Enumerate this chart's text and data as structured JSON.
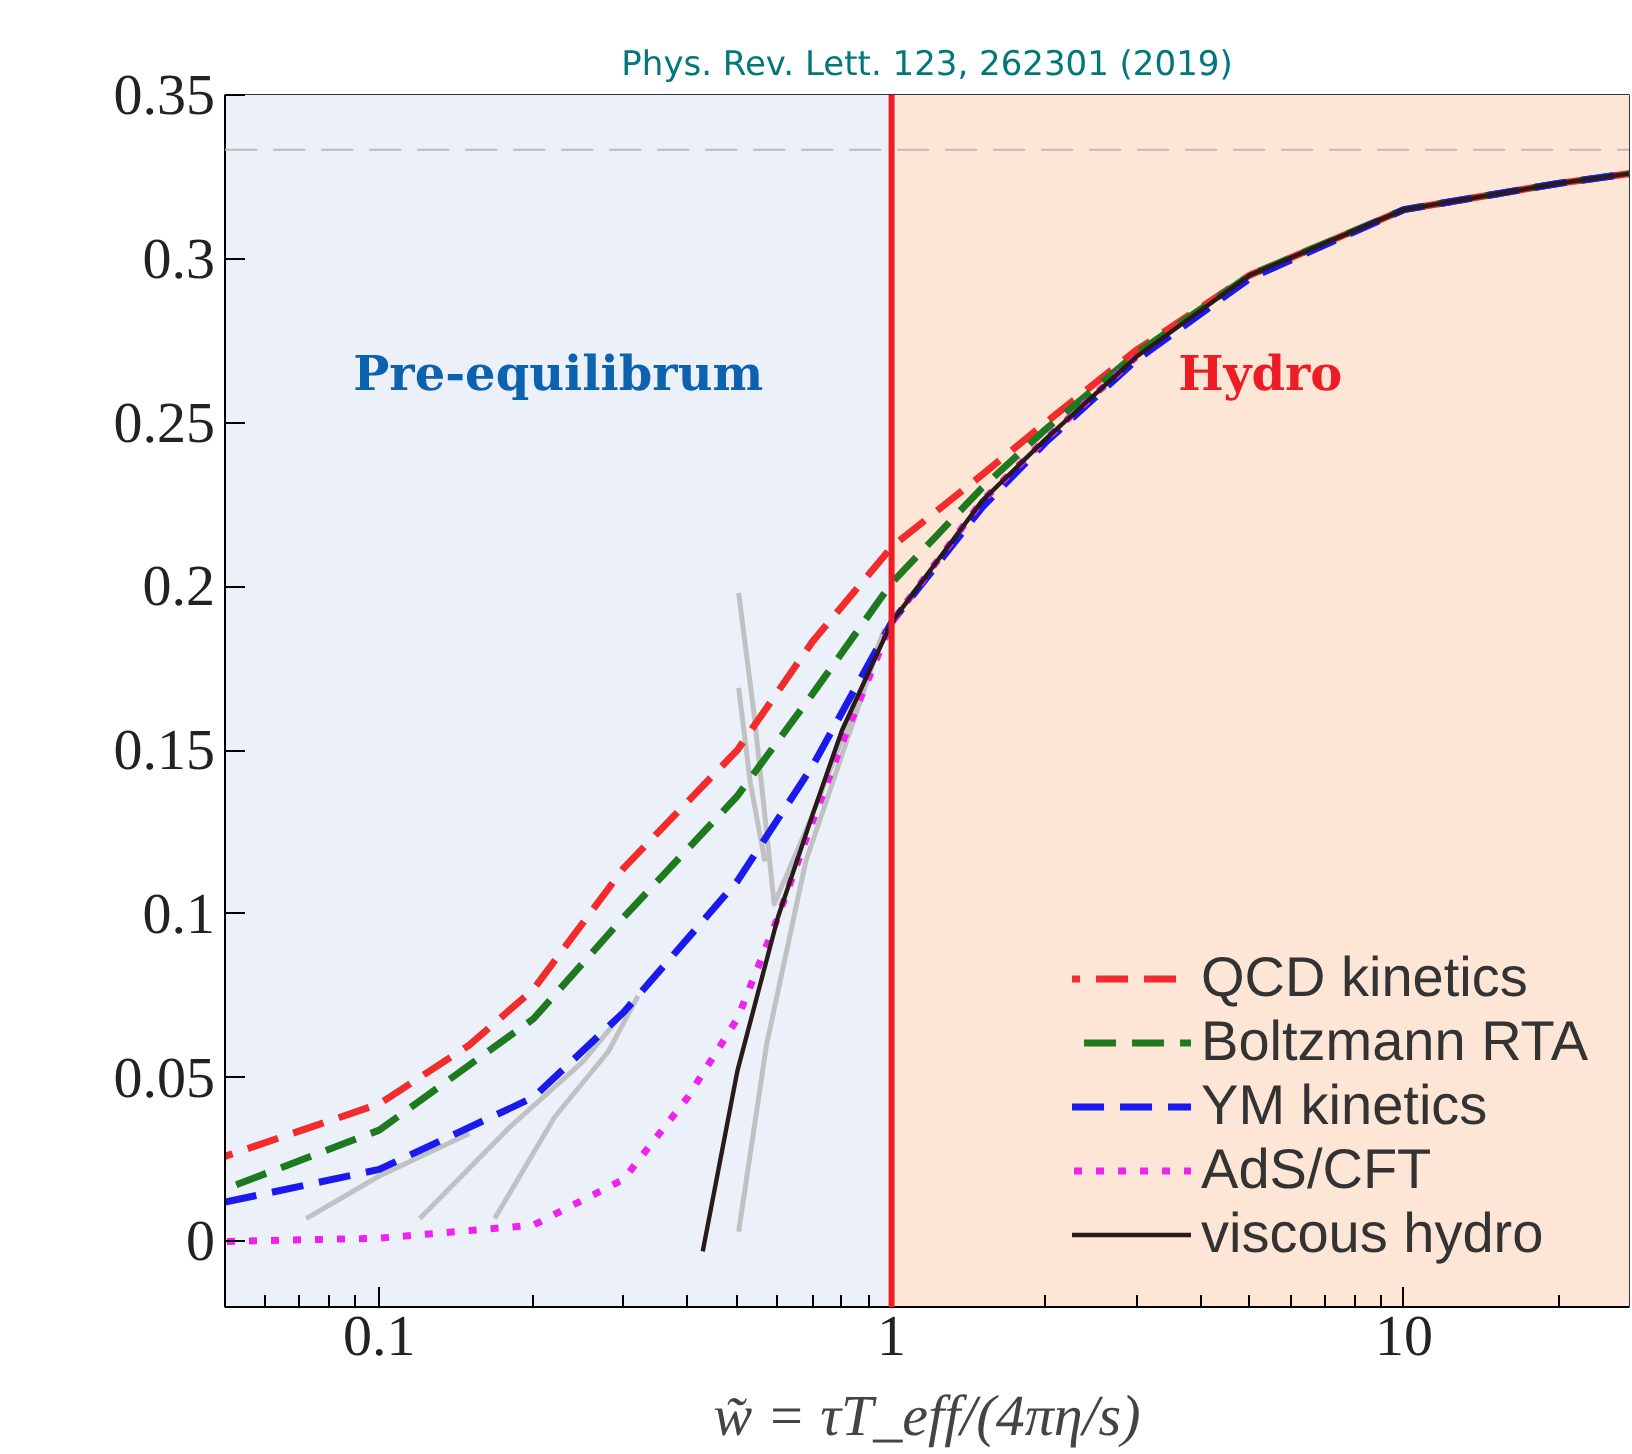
{
  "chart_data": {
    "type": "line",
    "title": "Phys. Rev. Lett. 123, 262301 (2019)",
    "xlabel": "w̃ = τT_eff/(4πη/s)",
    "log": "x",
    "xlim": [
      0.05,
      27.5
    ],
    "ylim": [
      -0.02,
      0.35
    ],
    "xticks": [
      0.1,
      1,
      10
    ],
    "yticks": [
      0,
      0.05,
      0.1,
      0.15,
      0.2,
      0.25,
      0.3,
      0.35
    ],
    "legend": "bottom right",
    "bands": [
      {
        "axis": "x",
        "from": 0.05,
        "to": 1,
        "label": "Pre-equilibrum",
        "color": "#ecf1f9"
      },
      {
        "axis": "x",
        "from": 1,
        "to": 27.5,
        "label": "Hydro",
        "color": "#fde6d5"
      }
    ],
    "ref_lines": [
      {
        "axis": "y",
        "value": 0.3333,
        "color": "#bbbbbb",
        "line_style": "dashed"
      },
      {
        "axis": "x",
        "value": 1,
        "color": "#ee1c25",
        "line_style": "solid"
      }
    ],
    "series": [
      {
        "color": "#bbbbbb",
        "line_style": "solid",
        "x": [
          0.072,
          0.1,
          0.15
        ],
        "values": [
          0.007,
          0.02,
          0.033
        ]
      },
      {
        "color": "#bbbbbb",
        "line_style": "solid",
        "x": [
          0.12,
          0.18,
          0.25,
          0.3
        ],
        "values": [
          0.007,
          0.035,
          0.055,
          0.07
        ]
      },
      {
        "color": "#bbbbbb",
        "line_style": "solid",
        "x": [
          0.168,
          0.22,
          0.28,
          0.32
        ],
        "values": [
          0.007,
          0.038,
          0.058,
          0.075
        ]
      },
      {
        "color": "#bbbbbb",
        "line_style": "solid",
        "x": [
          0.503,
          0.54,
          0.59,
          0.7,
          0.97
        ],
        "values": [
          0.198,
          0.16,
          0.103,
          0.13,
          0.187
        ]
      },
      {
        "color": "#bbbbbb",
        "line_style": "solid",
        "x": [
          0.503,
          0.53,
          0.566
        ],
        "values": [
          0.169,
          0.14,
          0.116
        ]
      },
      {
        "color": "#bbbbbb",
        "line_style": "solid",
        "x": [
          0.503,
          0.57,
          0.68,
          0.97
        ],
        "values": [
          0.003,
          0.06,
          0.116,
          0.187
        ]
      },
      {
        "name": "QCD kinetics",
        "color": "#f22b2b",
        "line_style": "dashed",
        "x": [
          0.05,
          0.1,
          0.15,
          0.2,
          0.3,
          0.5,
          0.7,
          1,
          1.5,
          2,
          3,
          5,
          10,
          20,
          27.5
        ],
        "values": [
          0.026,
          0.042,
          0.06,
          0.077,
          0.114,
          0.15,
          0.183,
          0.212,
          0.234,
          0.25,
          0.272,
          0.295,
          0.315,
          0.323,
          0.326
        ]
      },
      {
        "name": "Boltzmann RTA",
        "color": "#1f7a1f",
        "line_style": "dashed",
        "x": [
          0.05,
          0.1,
          0.2,
          0.3,
          0.5,
          0.7,
          1,
          1.5,
          2,
          3,
          5,
          10,
          20,
          27.5
        ],
        "values": [
          0.016,
          0.034,
          0.068,
          0.099,
          0.136,
          0.167,
          0.201,
          0.23,
          0.248,
          0.271,
          0.295,
          0.315,
          0.323,
          0.326
        ]
      },
      {
        "name": "YM kinetics",
        "color": "#1a1aee",
        "line_style": "dashed",
        "x": [
          0.05,
          0.1,
          0.2,
          0.3,
          0.5,
          0.7,
          1,
          1.5,
          2,
          3,
          5,
          10,
          20,
          27.5
        ],
        "values": [
          0.012,
          0.022,
          0.044,
          0.07,
          0.11,
          0.145,
          0.189,
          0.224,
          0.244,
          0.269,
          0.294,
          0.315,
          0.323,
          0.326
        ]
      },
      {
        "name": "AdS/CFT",
        "color": "#ee22ee",
        "line_style": "dotted",
        "x": [
          0.05,
          0.1,
          0.2,
          0.3,
          0.4,
          0.5,
          0.6,
          0.7,
          0.8,
          1,
          1.5,
          2,
          3
        ],
        "values": [
          0.0,
          0.001,
          0.005,
          0.019,
          0.044,
          0.068,
          0.099,
          0.128,
          0.152,
          0.189,
          0.226,
          0.245,
          0.27
        ]
      },
      {
        "name": "viscous hydro",
        "color": "#2a1a1a",
        "line_style": "solid",
        "x": [
          0.428,
          0.5,
          0.6,
          0.7,
          0.8,
          1,
          1.5,
          2,
          3,
          5,
          10,
          20,
          27.5
        ],
        "values": [
          -0.003,
          0.052,
          0.099,
          0.13,
          0.156,
          0.189,
          0.226,
          0.245,
          0.27,
          0.295,
          0.315,
          0.323,
          0.326
        ]
      }
    ]
  }
}
